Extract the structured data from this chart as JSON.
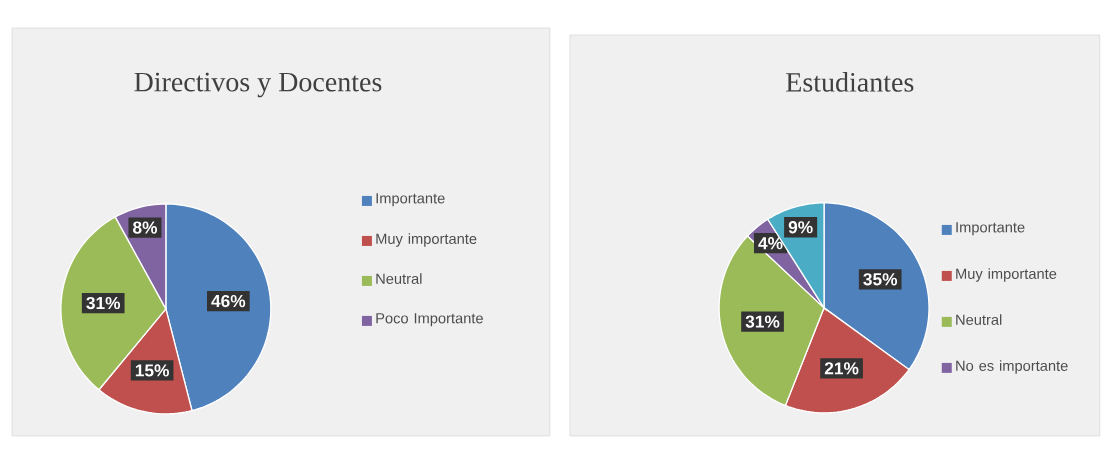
{
  "chart_data": [
    {
      "type": "pie",
      "title": "Directivos y Docentes",
      "categories": [
        "Importante",
        "Muy importante",
        "Neutral",
        "Poco Importante"
      ],
      "values": [
        46,
        15,
        31,
        8
      ],
      "value_labels": [
        "46%",
        "15%",
        "31%",
        "8%"
      ],
      "colors": [
        "#4f81bd",
        "#c0504d",
        "#9bbb59",
        "#8064a2"
      ],
      "legend": "right"
    },
    {
      "type": "pie",
      "title": "Estudiantes",
      "categories": [
        "Importante",
        "Muy importante",
        "Neutral",
        "No es importante",
        null
      ],
      "values": [
        35,
        21,
        31,
        4,
        9
      ],
      "value_labels": [
        "35%",
        "21%",
        "31%",
        "4%",
        "9%"
      ],
      "colors": [
        "#4f81bd",
        "#c0504d",
        "#9bbb59",
        "#8064a2",
        "#4bacc6"
      ],
      "legend": "right"
    }
  ]
}
